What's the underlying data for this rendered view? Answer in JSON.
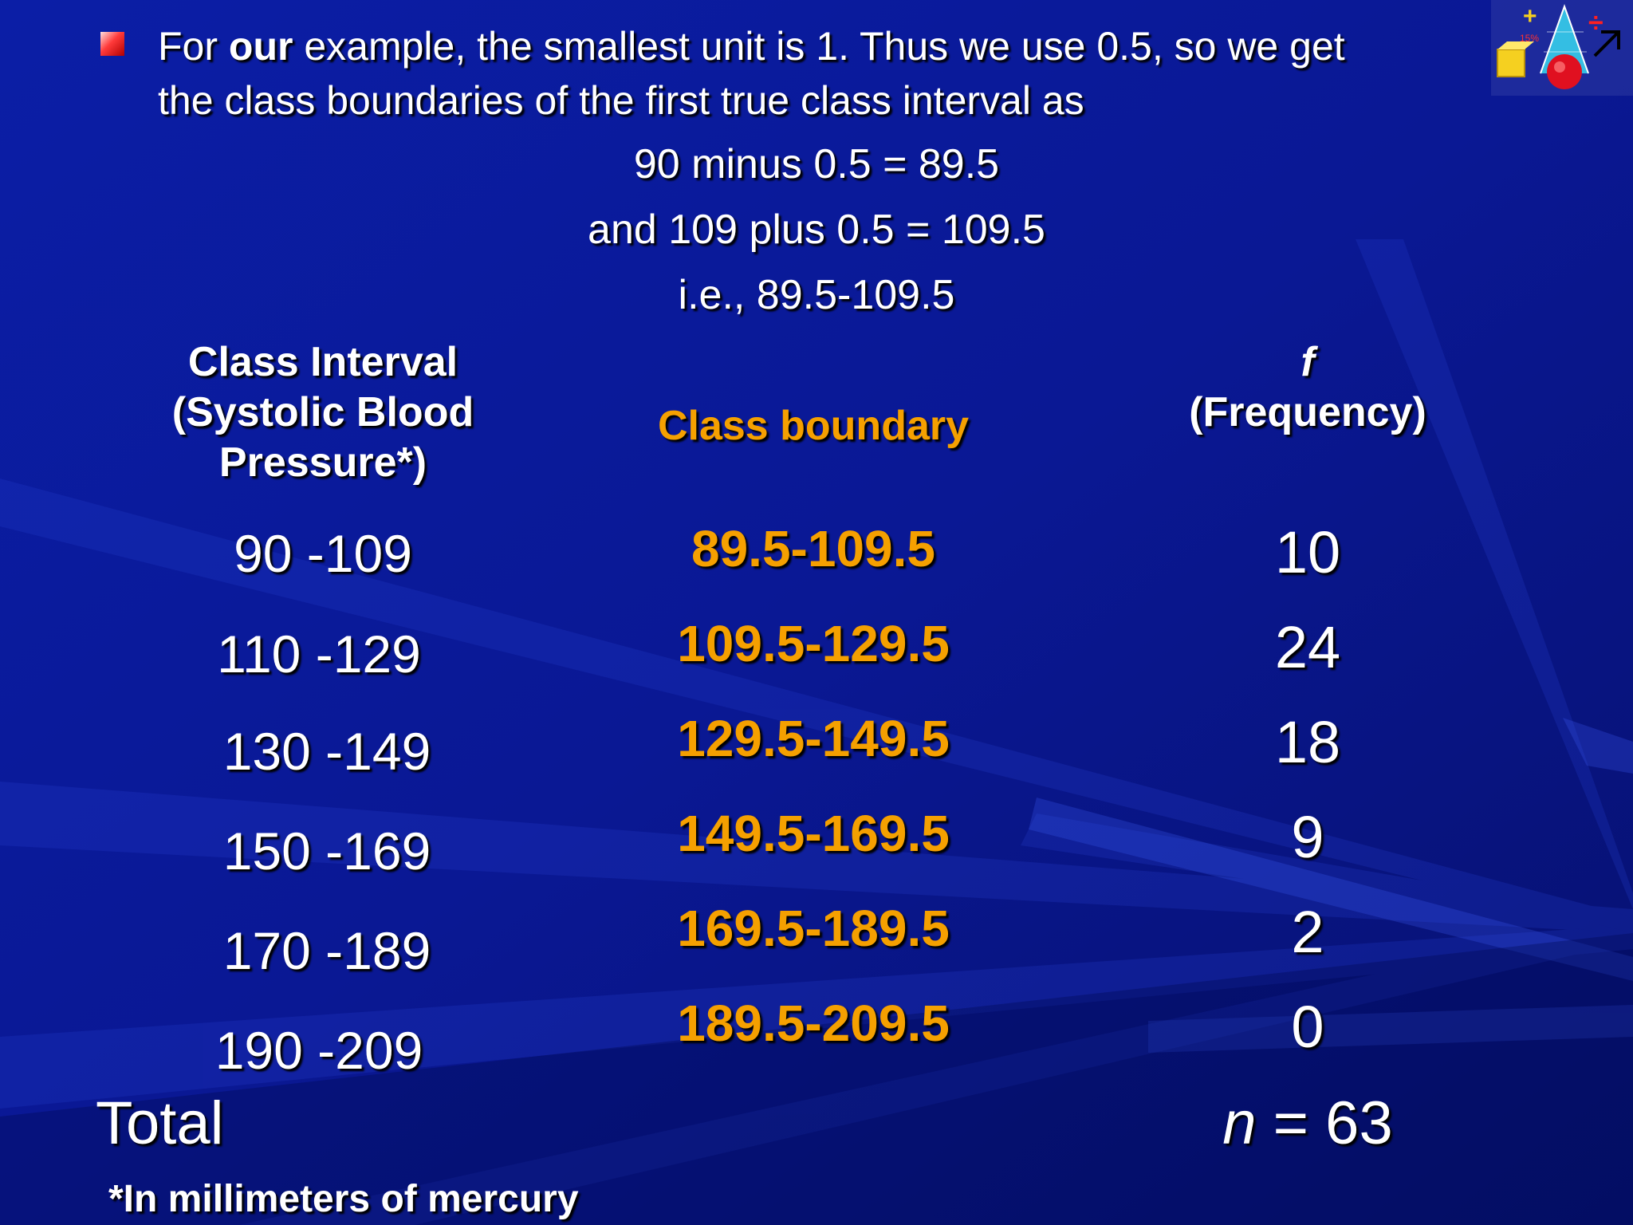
{
  "slide": {
    "intro": {
      "line1_before": "For ",
      "line1_bold": "our",
      "line1_after": " example, the smallest unit is 1. Thus  we use 0.5, so we get",
      "line2": "the class boundaries of the first true class interval as"
    },
    "calculations": [
      "90 minus 0.5 = 89.5",
      "and 109 plus 0.5 = 109.5",
      "i.e., 89.5-109.5"
    ]
  },
  "table": {
    "headers": {
      "interval": [
        "Class Interval",
        "(Systolic Blood",
        "Pressure*)"
      ],
      "boundary": "Class boundary",
      "frequency_symbol": "f",
      "frequency_label": "(Frequency)"
    },
    "rows": [
      {
        "interval": "90 -109",
        "boundary": "89.5-109.5",
        "frequency": "10"
      },
      {
        "interval": "110 -129",
        "boundary": "109.5-129.5",
        "frequency": "24"
      },
      {
        "interval": "130 -149",
        "boundary": "129.5-149.5",
        "frequency": "18"
      },
      {
        "interval": "150 -169",
        "boundary": "149.5-169.5",
        "frequency": "9"
      },
      {
        "interval": "170 -189",
        "boundary": "169.5-189.5",
        "frequency": "2"
      },
      {
        "interval": "190 -209",
        "boundary": "189.5-209.5",
        "frequency": "0"
      }
    ],
    "total": {
      "label": "Total",
      "n_symbol": "n",
      "n_value": " = 63"
    }
  },
  "footnote": "*In millimeters of mercury",
  "colors": {
    "background": "#0a1a9a",
    "text": "#ffffff",
    "accent": "#f5a000",
    "bullet": "#ff3a3a"
  },
  "clipart": {
    "icon": "math-clipart-icon",
    "label": "15%"
  }
}
